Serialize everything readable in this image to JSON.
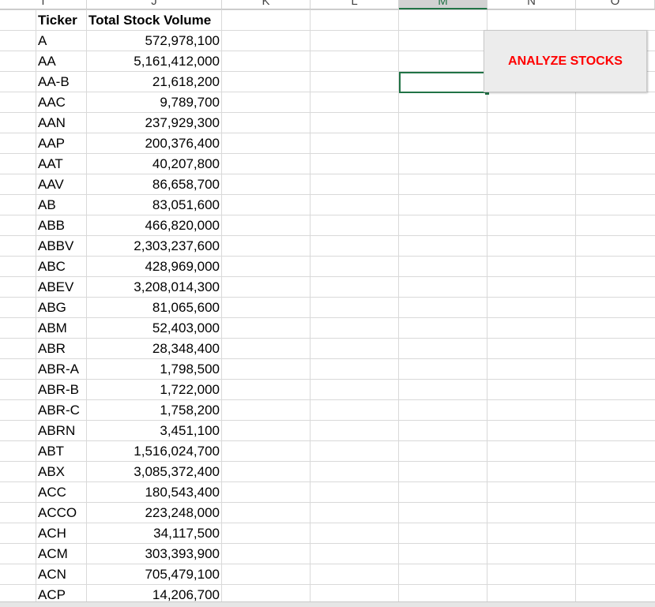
{
  "columns": [
    "I",
    "J",
    "K",
    "L",
    "M",
    "N",
    "O"
  ],
  "selected_column": "M",
  "table": {
    "headers": {
      "ticker": "Ticker",
      "volume": "Total Stock Volume"
    },
    "rows": [
      {
        "ticker": "A",
        "volume": "572,978,100"
      },
      {
        "ticker": "AA",
        "volume": "5,161,412,000"
      },
      {
        "ticker": "AA-B",
        "volume": "21,618,200"
      },
      {
        "ticker": "AAC",
        "volume": "9,789,700"
      },
      {
        "ticker": "AAN",
        "volume": "237,929,300"
      },
      {
        "ticker": "AAP",
        "volume": "200,376,400"
      },
      {
        "ticker": "AAT",
        "volume": "40,207,800"
      },
      {
        "ticker": "AAV",
        "volume": "86,658,700"
      },
      {
        "ticker": "AB",
        "volume": "83,051,600"
      },
      {
        "ticker": "ABB",
        "volume": "466,820,000"
      },
      {
        "ticker": "ABBV",
        "volume": "2,303,237,600"
      },
      {
        "ticker": "ABC",
        "volume": "428,969,000"
      },
      {
        "ticker": "ABEV",
        "volume": "3,208,014,300"
      },
      {
        "ticker": "ABG",
        "volume": "81,065,600"
      },
      {
        "ticker": "ABM",
        "volume": "52,403,000"
      },
      {
        "ticker": "ABR",
        "volume": "28,348,400"
      },
      {
        "ticker": "ABR-A",
        "volume": "1,798,500"
      },
      {
        "ticker": "ABR-B",
        "volume": "1,722,000"
      },
      {
        "ticker": "ABR-C",
        "volume": "1,758,200"
      },
      {
        "ticker": "ABRN",
        "volume": "3,451,100"
      },
      {
        "ticker": "ABT",
        "volume": "1,516,024,700"
      },
      {
        "ticker": "ABX",
        "volume": "3,085,372,400"
      },
      {
        "ticker": "ACC",
        "volume": "180,543,400"
      },
      {
        "ticker": "ACCO",
        "volume": "223,248,000"
      },
      {
        "ticker": "ACH",
        "volume": "34,117,500"
      },
      {
        "ticker": "ACM",
        "volume": "303,393,900"
      },
      {
        "ticker": "ACN",
        "volume": "705,479,100"
      },
      {
        "ticker": "ACP",
        "volume": "14,206,700"
      }
    ]
  },
  "button": {
    "label": "ANALYZE STOCKS"
  },
  "colors": {
    "accent": "#217346",
    "button_text": "#ff0000"
  }
}
